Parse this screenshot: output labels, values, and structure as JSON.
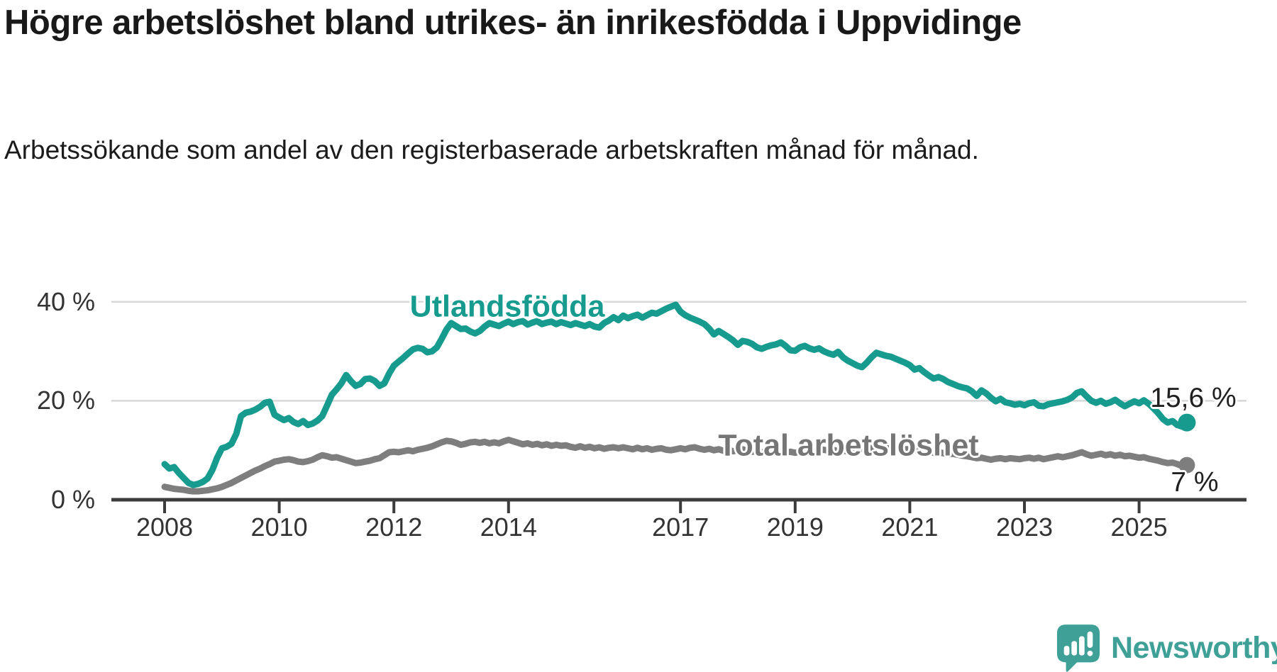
{
  "header": {
    "title": "Högre arbetslöshet bland utrikes- än inrikesfödda i Uppvidinge",
    "subtitle": "Arbetssökande som andel av den registerbaserade arbetskraften månad för månad."
  },
  "footer": {
    "brand": "Newsworthy",
    "logo_icon": "speech-bubble-bar-chart-icon"
  },
  "colors": {
    "teal_line": "#169B8E",
    "gray_line": "#7E7E7E",
    "value_label": "#202020",
    "grid": "#D8D8D8",
    "axis": "#3C3C3C",
    "logo_teal": "#3EA096"
  },
  "chart_data": {
    "type": "line",
    "title": "Högre arbetslöshet bland utrikes- än inrikesfödda i Uppvidinge",
    "subtitle": "Arbetssökande som andel av den registerbaserade arbetskraften månad för månad.",
    "legend": "inline-labels",
    "grid": "horizontal",
    "x_axis": {
      "interval": "monthly",
      "start": "2008-01",
      "end": "2025-11",
      "tick_years": [
        2008,
        2010,
        2012,
        2014,
        2017,
        2019,
        2021,
        2023,
        2025
      ],
      "tick_labels": [
        "2008",
        "2010",
        "2012",
        "2014",
        "2017",
        "2019",
        "2021",
        "2023",
        "2025"
      ]
    },
    "y_axis": {
      "unit": "%",
      "ylim": [
        0,
        42
      ],
      "tick_values": [
        0,
        20,
        40
      ],
      "tick_labels": [
        "0 %",
        "20 %",
        "40 %"
      ]
    },
    "series": [
      {
        "name": "Utlandsfödda",
        "color": "#169B8E",
        "end_label": "15,6 %",
        "end_value": 15.6,
        "start_year": 2008,
        "monthly_values": [
          7.2,
          6.3,
          6.6,
          5.4,
          4.4,
          3.4,
          3.0,
          3.2,
          3.6,
          4.3,
          6.0,
          8.5,
          10.4,
          10.7,
          11.3,
          13.3,
          16.9,
          17.6,
          17.8,
          18.2,
          18.8,
          19.6,
          19.8,
          17.2,
          16.6,
          16.1,
          16.5,
          15.7,
          15.3,
          15.9,
          15.1,
          15.4,
          16.0,
          16.9,
          19.0,
          21.2,
          22.3,
          23.5,
          25.2,
          24.0,
          23.0,
          23.4,
          24.4,
          24.5,
          24.0,
          23.0,
          23.5,
          25.5,
          27.1,
          27.9,
          28.7,
          29.6,
          30.4,
          30.7,
          30.5,
          29.8,
          30.0,
          30.8,
          32.5,
          34.4,
          35.7,
          35.1,
          34.5,
          34.6,
          34.0,
          33.6,
          34.1,
          35.0,
          35.7,
          35.4,
          35.1,
          35.6,
          36.0,
          35.5,
          35.9,
          36.1,
          35.4,
          35.8,
          36.1,
          35.5,
          35.8,
          36.0,
          35.5,
          35.9,
          35.6,
          35.3,
          35.7,
          35.4,
          35.1,
          35.5,
          35.0,
          34.8,
          35.7,
          36.2,
          36.9,
          36.3,
          37.2,
          36.7,
          37.1,
          37.4,
          36.8,
          37.3,
          37.8,
          37.6,
          38.1,
          38.6,
          39.0,
          39.4,
          38.0,
          37.3,
          36.8,
          36.4,
          36.0,
          35.5,
          34.6,
          33.4,
          34.1,
          33.5,
          32.9,
          32.2,
          31.3,
          32.1,
          31.9,
          31.5,
          30.8,
          30.5,
          30.9,
          31.2,
          31.4,
          31.8,
          31.1,
          30.2,
          30.1,
          30.8,
          31.1,
          30.6,
          30.3,
          30.6,
          30.0,
          29.6,
          29.3,
          29.9,
          28.8,
          28.1,
          27.6,
          27.1,
          26.8,
          27.7,
          28.8,
          29.7,
          29.4,
          29.1,
          28.9,
          28.5,
          28.1,
          27.7,
          27.2,
          26.3,
          26.6,
          25.8,
          25.1,
          24.5,
          24.8,
          24.4,
          23.8,
          23.4,
          23.0,
          22.7,
          22.5,
          21.9,
          21.0,
          22.1,
          21.5,
          20.6,
          19.9,
          20.4,
          19.7,
          19.5,
          19.2,
          19.4,
          19.1,
          19.5,
          19.7,
          19.0,
          18.9,
          19.3,
          19.5,
          19.7,
          19.9,
          20.2,
          20.7,
          21.6,
          21.9,
          20.9,
          20.0,
          19.6,
          20.0,
          19.4,
          19.7,
          20.2,
          19.5,
          18.9,
          19.4,
          19.9,
          19.5,
          20.1,
          19.4,
          18.5,
          17.5,
          16.3,
          15.6,
          15.9,
          15.1,
          14.8,
          15.6
        ]
      },
      {
        "name": "Total arbetslöshet",
        "color": "#7E7E7E",
        "end_label": "7 %",
        "end_value": 7.0,
        "start_year": 2008,
        "monthly_values": [
          2.6,
          2.4,
          2.2,
          2.1,
          2.0,
          1.8,
          1.7,
          1.7,
          1.8,
          1.9,
          2.1,
          2.3,
          2.6,
          3.0,
          3.4,
          3.9,
          4.4,
          4.9,
          5.4,
          5.9,
          6.3,
          6.8,
          7.2,
          7.7,
          7.9,
          8.1,
          8.2,
          8.0,
          7.7,
          7.6,
          7.8,
          8.1,
          8.6,
          9.0,
          8.8,
          8.5,
          8.6,
          8.3,
          8.0,
          7.7,
          7.4,
          7.5,
          7.7,
          7.9,
          8.2,
          8.4,
          9.0,
          9.6,
          9.7,
          9.6,
          9.8,
          10.0,
          9.8,
          10.1,
          10.3,
          10.5,
          10.8,
          11.2,
          11.6,
          11.9,
          11.8,
          11.5,
          11.1,
          11.3,
          11.6,
          11.7,
          11.5,
          11.7,
          11.4,
          11.6,
          11.4,
          11.8,
          12.1,
          11.8,
          11.5,
          11.2,
          11.4,
          11.1,
          11.3,
          11.0,
          11.2,
          10.9,
          11.1,
          10.9,
          11.0,
          10.7,
          10.5,
          10.8,
          10.5,
          10.7,
          10.4,
          10.6,
          10.3,
          10.5,
          10.6,
          10.4,
          10.6,
          10.4,
          10.2,
          10.5,
          10.2,
          10.4,
          10.1,
          10.3,
          10.4,
          10.1,
          10.0,
          10.2,
          10.4,
          10.2,
          10.5,
          10.6,
          10.3,
          10.1,
          10.3,
          10.0,
          10.2,
          9.9,
          10.1,
          9.8,
          10.0,
          10.2,
          9.9,
          9.7,
          9.8,
          9.6,
          9.8,
          9.5,
          9.7,
          9.9,
          9.6,
          9.7,
          9.5,
          9.7,
          9.9,
          9.6,
          9.8,
          10.0,
          10.1,
          9.9,
          10.1,
          9.8,
          10.0,
          9.7,
          9.9,
          10.1,
          10.3,
          10.6,
          10.4,
          10.5,
          10.3,
          10.5,
          10.2,
          10.4,
          10.1,
          10.2,
          10.2,
          10.0,
          10.1,
          9.9,
          9.7,
          9.5,
          9.7,
          9.4,
          9.2,
          9.3,
          9.1,
          8.9,
          8.8,
          8.6,
          8.4,
          8.5,
          8.3,
          8.1,
          8.3,
          8.4,
          8.2,
          8.4,
          8.3,
          8.2,
          8.4,
          8.5,
          8.3,
          8.5,
          8.2,
          8.4,
          8.6,
          8.8,
          8.6,
          8.8,
          9.0,
          9.3,
          9.6,
          9.2,
          8.9,
          9.1,
          9.3,
          9.0,
          9.2,
          8.9,
          9.1,
          8.8,
          8.9,
          8.7,
          8.5,
          8.6,
          8.3,
          8.1,
          7.9,
          7.6,
          7.4,
          7.5,
          7.2,
          6.8,
          7.0
        ]
      }
    ]
  }
}
